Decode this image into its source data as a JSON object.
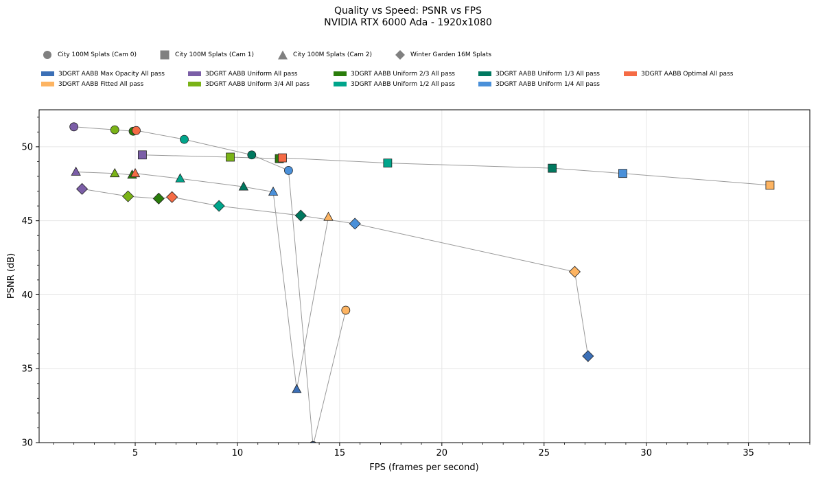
{
  "chart_data": {
    "type": "scatter",
    "title": "Quality vs Speed: PSNR vs FPS",
    "subtitle": "NVIDIA RTX 6000 Ada - 1920x1080",
    "xlabel": "FPS (frames per second)",
    "ylabel": "PSNR (dB)",
    "xlim": [
      0.3,
      38
    ],
    "ylim": [
      30,
      52.5
    ],
    "xticks": [
      5,
      10,
      15,
      20,
      25,
      30,
      35
    ],
    "yticks": [
      30,
      35,
      40,
      45,
      50
    ],
    "grid": true,
    "legend_placement": "top",
    "scenes": [
      {
        "name": "City 100M Splats (Cam 0)",
        "marker": "circle"
      },
      {
        "name": "City 100M Splats (Cam 1)",
        "marker": "square"
      },
      {
        "name": "City 100M Splats (Cam 2)",
        "marker": "triangle"
      },
      {
        "name": "Winter Garden 16M Splats",
        "marker": "diamond"
      }
    ],
    "methods": [
      {
        "name": "3DGRT AABB Max Opacity All pass",
        "color": "#3b6fb6"
      },
      {
        "name": "3DGRT AABB Fitted All pass",
        "color": "#fdb462"
      },
      {
        "name": "3DGRT AABB Uniform All pass",
        "color": "#7b5ea7"
      },
      {
        "name": "3DGRT AABB Uniform 3/4 All pass",
        "color": "#7ab317"
      },
      {
        "name": "3DGRT AABB Uniform 2/3 All pass",
        "color": "#2a7d0b"
      },
      {
        "name": "3DGRT AABB Uniform 1/2 All pass",
        "color": "#00a58b"
      },
      {
        "name": "3DGRT AABB Uniform 1/3 All pass",
        "color": "#00785f"
      },
      {
        "name": "3DGRT AABB Uniform 1/4 All pass",
        "color": "#4a90d9"
      },
      {
        "name": "3DGRT AABB Optimal All pass",
        "color": "#f56b45"
      }
    ],
    "series": [
      {
        "scene": 0,
        "points": [
          {
            "method": 2,
            "x": 2.0,
            "y": 51.35
          },
          {
            "method": 3,
            "x": 4.0,
            "y": 51.15
          },
          {
            "method": 4,
            "x": 4.9,
            "y": 51.05
          },
          {
            "method": 8,
            "x": 5.05,
            "y": 51.1
          },
          {
            "method": 5,
            "x": 7.4,
            "y": 50.5
          },
          {
            "method": 6,
            "x": 10.7,
            "y": 49.45
          },
          {
            "method": 7,
            "x": 12.5,
            "y": 48.4
          },
          {
            "method": 0,
            "x": 13.7,
            "y": 29.8
          },
          {
            "method": 1,
            "x": 15.3,
            "y": 38.95
          }
        ]
      },
      {
        "scene": 1,
        "points": [
          {
            "method": 2,
            "x": 5.35,
            "y": 49.45
          },
          {
            "method": 3,
            "x": 9.65,
            "y": 49.3
          },
          {
            "method": 4,
            "x": 12.05,
            "y": 49.2
          },
          {
            "method": 8,
            "x": 12.2,
            "y": 49.25
          },
          {
            "method": 5,
            "x": 17.35,
            "y": 48.9
          },
          {
            "method": 6,
            "x": 25.4,
            "y": 48.55
          },
          {
            "method": 7,
            "x": 28.85,
            "y": 48.2
          },
          {
            "method": 1,
            "x": 36.05,
            "y": 47.4
          }
        ]
      },
      {
        "scene": 2,
        "points": [
          {
            "method": 2,
            "x": 2.1,
            "y": 48.3
          },
          {
            "method": 3,
            "x": 4.0,
            "y": 48.2
          },
          {
            "method": 4,
            "x": 4.85,
            "y": 48.1
          },
          {
            "method": 8,
            "x": 5.0,
            "y": 48.2
          },
          {
            "method": 5,
            "x": 7.2,
            "y": 47.85
          },
          {
            "method": 6,
            "x": 10.3,
            "y": 47.3
          },
          {
            "method": 7,
            "x": 11.75,
            "y": 46.95
          },
          {
            "method": 0,
            "x": 12.9,
            "y": 33.6
          },
          {
            "method": 1,
            "x": 14.45,
            "y": 45.25
          }
        ]
      },
      {
        "scene": 3,
        "points": [
          {
            "method": 2,
            "x": 2.4,
            "y": 47.15
          },
          {
            "method": 3,
            "x": 4.65,
            "y": 46.65
          },
          {
            "method": 4,
            "x": 6.15,
            "y": 46.5
          },
          {
            "method": 8,
            "x": 6.8,
            "y": 46.6
          },
          {
            "method": 5,
            "x": 9.1,
            "y": 46.0
          },
          {
            "method": 6,
            "x": 13.1,
            "y": 45.35
          },
          {
            "method": 7,
            "x": 15.75,
            "y": 44.8
          },
          {
            "method": 1,
            "x": 26.5,
            "y": 41.55
          },
          {
            "method": 0,
            "x": 27.15,
            "y": 35.85
          }
        ]
      }
    ]
  }
}
